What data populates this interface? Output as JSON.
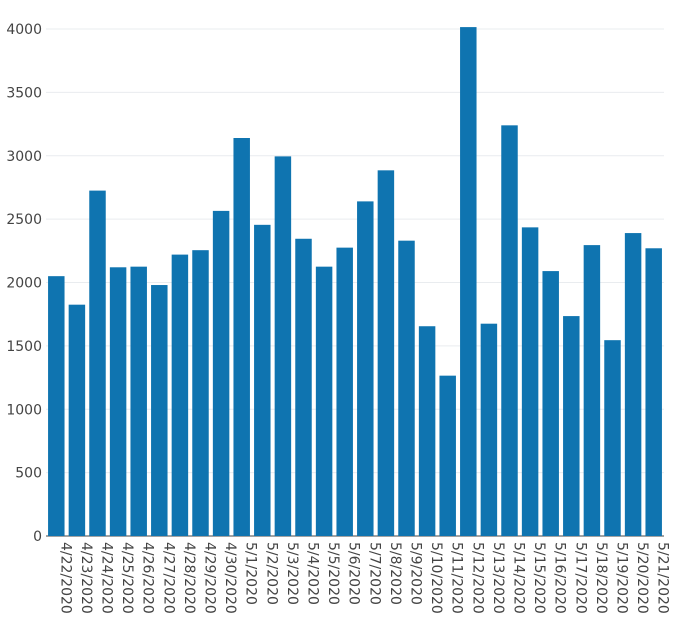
{
  "chart_data": {
    "type": "bar",
    "title": "",
    "xlabel": "",
    "ylabel": "",
    "categories": [
      "4/22/2020",
      "4/23/2020",
      "4/24/2020",
      "4/25/2020",
      "4/26/2020",
      "4/27/2020",
      "4/28/2020",
      "4/29/2020",
      "4/30/2020",
      "5/1/2020",
      "5/2/2020",
      "5/3/2020",
      "5/4/2020",
      "5/5/2020",
      "5/6/2020",
      "5/7/2020",
      "5/8/2020",
      "5/9/2020",
      "5/10/2020",
      "5/11/2020",
      "5/12/2020",
      "5/13/2020",
      "5/14/2020",
      "5/15/2020",
      "5/16/2020",
      "5/17/2020",
      "5/18/2020",
      "5/19/2020",
      "5/20/2020",
      "5/21/2020"
    ],
    "values": [
      2050,
      1825,
      2725,
      2120,
      2125,
      1980,
      2220,
      2255,
      2565,
      3140,
      2455,
      2995,
      2345,
      2125,
      2275,
      2640,
      2885,
      2330,
      1655,
      1265,
      4015,
      1675,
      3240,
      2435,
      2090,
      1735,
      2295,
      1545,
      2390,
      2270
    ],
    "ylim": [
      0,
      4000
    ],
    "yticks": [
      0,
      500,
      1000,
      1500,
      2000,
      2500,
      3000,
      3500,
      4000
    ],
    "grid": true,
    "colors": {
      "bar": "#0f74b0",
      "grid": "#e9ecef",
      "axis": "#444444"
    }
  }
}
